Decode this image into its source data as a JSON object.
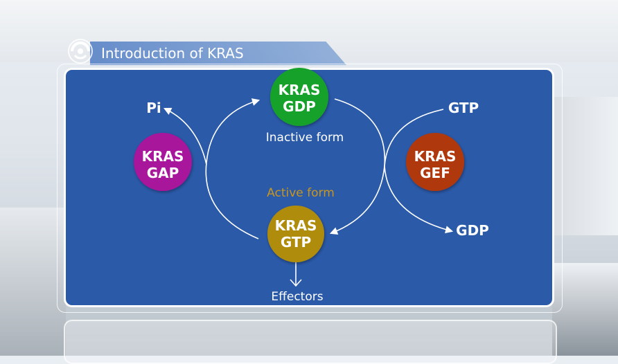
{
  "header": {
    "title": "Introduction of KRAS"
  },
  "diagram": {
    "nodes": {
      "gdp": {
        "line1": "KRAS",
        "line2": "GDP",
        "color": "#16a22c"
      },
      "gtp": {
        "line1": "KRAS",
        "line2": "GTP",
        "color": "#b08c10"
      },
      "gap": {
        "line1": "KRAS",
        "line2": "GAP",
        "color": "#a8129c"
      },
      "gef": {
        "line1": "KRAS",
        "line2": "GEF",
        "color": "#b0380c"
      }
    },
    "labels": {
      "inactive": "Inactive form",
      "active": "Active form",
      "pi": "Pi",
      "gtp_in": "GTP",
      "gdp_out": "GDP",
      "effectors": "Effectors"
    },
    "colors": {
      "panel": "#2b5aa9",
      "active_label": "#c8961e"
    }
  }
}
